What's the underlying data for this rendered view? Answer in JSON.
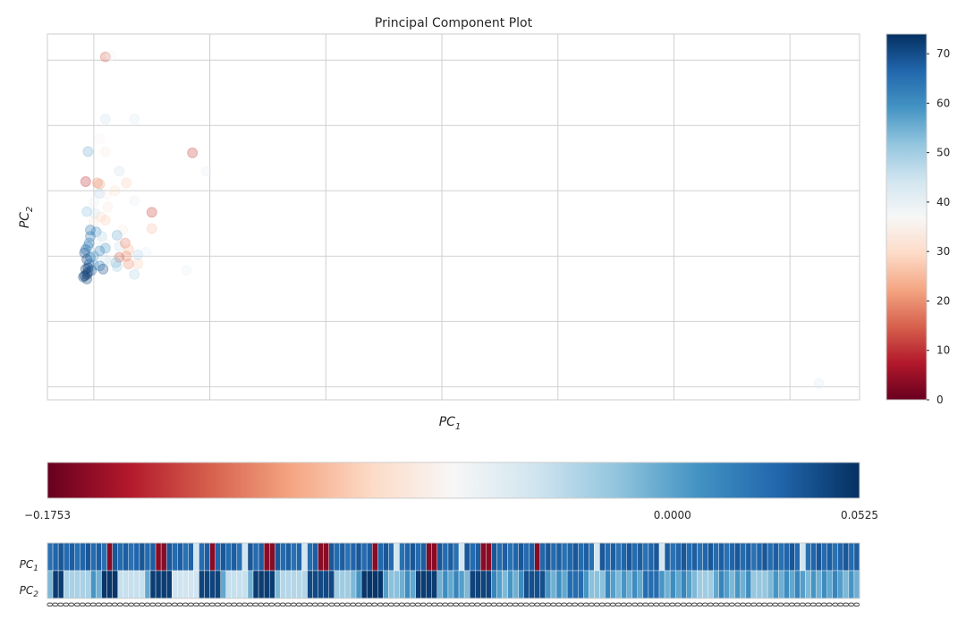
{
  "chart_data": [
    {
      "type": "scatter",
      "title": "Principal Component Plot",
      "xlabel": "PC",
      "xlabel_sub": "1",
      "ylabel": "PC",
      "ylabel_sub": "2",
      "xlim": [
        -0.4,
        6.6
      ],
      "ylim": [
        -2.2,
        3.4
      ],
      "x_gridlines": [
        0,
        1,
        2,
        3,
        4,
        5,
        6
      ],
      "y_gridlines": [
        -2,
        -1,
        0,
        1,
        2,
        3
      ],
      "grid": true,
      "colormap": "RdBu",
      "colorbar": {
        "min": 0,
        "max": 74,
        "ticks": [
          0,
          10,
          20,
          30,
          40,
          50,
          60,
          70
        ],
        "placement": "right"
      },
      "points": [
        {
          "x": 0.1,
          "y": 3.05,
          "c": 15
        },
        {
          "x": 0.15,
          "y": 3.07,
          "c": 38
        },
        {
          "x": 0.1,
          "y": 2.1,
          "c": 45
        },
        {
          "x": 0.35,
          "y": 2.1,
          "c": 42
        },
        {
          "x": -0.05,
          "y": 1.6,
          "c": 55
        },
        {
          "x": 0.05,
          "y": 1.8,
          "c": 36
        },
        {
          "x": 0.1,
          "y": 1.6,
          "c": 34
        },
        {
          "x": 0.85,
          "y": 1.58,
          "c": 12
        },
        {
          "x": 0.97,
          "y": 1.3,
          "c": 40
        },
        {
          "x": 0.22,
          "y": 1.3,
          "c": 45
        },
        {
          "x": -0.07,
          "y": 1.14,
          "c": 10
        },
        {
          "x": 0.03,
          "y": 1.12,
          "c": 20
        },
        {
          "x": 0.05,
          "y": 1.1,
          "c": 22
        },
        {
          "x": 0.28,
          "y": 1.12,
          "c": 28
        },
        {
          "x": 0.18,
          "y": 1.0,
          "c": 30
        },
        {
          "x": 0.05,
          "y": 0.96,
          "c": 48
        },
        {
          "x": 0.11,
          "y": 0.95,
          "c": 35
        },
        {
          "x": 0.35,
          "y": 0.85,
          "c": 40
        },
        {
          "x": 0.0,
          "y": 0.82,
          "c": 40
        },
        {
          "x": 0.12,
          "y": 0.75,
          "c": 33
        },
        {
          "x": -0.06,
          "y": 0.68,
          "c": 52
        },
        {
          "x": 0.01,
          "y": 0.65,
          "c": 45
        },
        {
          "x": 0.5,
          "y": 0.67,
          "c": 12
        },
        {
          "x": 0.06,
          "y": 0.6,
          "c": 30
        },
        {
          "x": 0.1,
          "y": 0.55,
          "c": 28
        },
        {
          "x": 0.0,
          "y": 0.53,
          "c": 33
        },
        {
          "x": 0.5,
          "y": 0.42,
          "c": 26
        },
        {
          "x": 0.25,
          "y": 0.4,
          "c": 34
        },
        {
          "x": 0.2,
          "y": 0.32,
          "c": 55
        },
        {
          "x": 0.02,
          "y": 0.37,
          "c": 60
        },
        {
          "x": -0.03,
          "y": 0.4,
          "c": 65
        },
        {
          "x": 0.07,
          "y": 0.3,
          "c": 48
        },
        {
          "x": 0.03,
          "y": 0.25,
          "c": 40
        },
        {
          "x": 0.22,
          "y": 0.15,
          "c": 45
        },
        {
          "x": 0.1,
          "y": 0.2,
          "c": 38
        },
        {
          "x": 0.27,
          "y": 0.2,
          "c": 18
        },
        {
          "x": 0.38,
          "y": 0.02,
          "c": 48
        },
        {
          "x": 0.3,
          "y": 0.1,
          "c": 25
        },
        {
          "x": 0.1,
          "y": 0.12,
          "c": 58
        },
        {
          "x": 0.05,
          "y": 0.08,
          "c": 62
        },
        {
          "x": -0.05,
          "y": 0.15,
          "c": 60
        },
        {
          "x": 0.28,
          "y": 0.0,
          "c": 20
        },
        {
          "x": 0.22,
          "y": -0.02,
          "c": 15
        },
        {
          "x": 0.45,
          "y": 0.06,
          "c": 40
        },
        {
          "x": 0.19,
          "y": -0.1,
          "c": 55
        },
        {
          "x": 0.38,
          "y": -0.12,
          "c": 28
        },
        {
          "x": 0.3,
          "y": -0.12,
          "c": 20
        },
        {
          "x": 0.1,
          "y": -0.05,
          "c": 45
        },
        {
          "x": 0.14,
          "y": -0.08,
          "c": 42
        },
        {
          "x": 0.0,
          "y": -0.14,
          "c": 55
        },
        {
          "x": 0.05,
          "y": -0.15,
          "c": 62
        },
        {
          "x": 0.08,
          "y": -0.2,
          "c": 70
        },
        {
          "x": 0.2,
          "y": -0.16,
          "c": 50
        },
        {
          "x": 0.35,
          "y": -0.28,
          "c": 48
        },
        {
          "x": 0.8,
          "y": -0.22,
          "c": 40
        },
        {
          "x": 6.25,
          "y": -1.95,
          "c": 42
        },
        {
          "x": -0.08,
          "y": 0.05,
          "c": 70
        },
        {
          "x": -0.06,
          "y": -0.05,
          "c": 72
        },
        {
          "x": -0.04,
          "y": -0.12,
          "c": 68
        },
        {
          "x": -0.07,
          "y": -0.2,
          "c": 73
        },
        {
          "x": -0.05,
          "y": -0.25,
          "c": 71
        },
        {
          "x": -0.08,
          "y": -0.3,
          "c": 74
        },
        {
          "x": -0.06,
          "y": -0.35,
          "c": 72
        },
        {
          "x": -0.09,
          "y": -0.32,
          "c": 70
        },
        {
          "x": -0.03,
          "y": -0.02,
          "c": 66
        },
        {
          "x": -0.02,
          "y": -0.22,
          "c": 69
        },
        {
          "x": -0.07,
          "y": 0.1,
          "c": 67
        },
        {
          "x": -0.04,
          "y": 0.2,
          "c": 64
        },
        {
          "x": -0.06,
          "y": -0.28,
          "c": 73
        },
        {
          "x": -0.05,
          "y": -0.18,
          "c": 71
        },
        {
          "x": 0.0,
          "y": 0.0,
          "c": 58
        },
        {
          "x": -0.03,
          "y": 0.3,
          "c": 63
        }
      ]
    },
    {
      "type": "heatmap",
      "rows": [
        "PC",
        "PC"
      ],
      "row_subscripts": [
        "1",
        "2"
      ],
      "colorbar": {
        "min": -0.1753,
        "max": 0.0525,
        "tick_labels": [
          "−0.1753",
          "0.0000",
          "0.0525"
        ],
        "ticks": [
          -0.1753,
          0.0,
          0.0525
        ],
        "placement": "top"
      },
      "n_columns": 150,
      "column_tick_label": "0",
      "pc1_strong_negative": [
        11,
        20,
        21,
        30,
        40,
        41,
        50,
        51,
        60,
        70,
        71,
        80,
        81,
        90
      ],
      "pc1_weak_negative": [
        27,
        36,
        47,
        64,
        76,
        101,
        113,
        139
      ],
      "pc2_negative_runs": [
        [
          3,
          7,
          0.35
        ],
        [
          13,
          17,
          0.5
        ],
        [
          23,
          27,
          0.55
        ],
        [
          33,
          36,
          0.5
        ],
        [
          43,
          47,
          0.4
        ],
        [
          53,
          55,
          0.3
        ],
        [
          63,
          64,
          0.2
        ],
        [
          100,
          102,
          0.2
        ],
        [
          120,
          122,
          0.3
        ],
        [
          130,
          132,
          0.25
        ]
      ],
      "pc2_positive_runs": [
        [
          1,
          2,
          0.9
        ],
        [
          10,
          12,
          0.95
        ],
        [
          19,
          22,
          0.9
        ],
        [
          28,
          31,
          0.85
        ],
        [
          38,
          41,
          0.9
        ],
        [
          48,
          52,
          0.8
        ],
        [
          58,
          61,
          0.95
        ],
        [
          68,
          71,
          0.9
        ],
        [
          78,
          81,
          0.85
        ],
        [
          88,
          91,
          0.75
        ],
        [
          96,
          98,
          0.5
        ],
        [
          110,
          112,
          0.5
        ]
      ]
    }
  ]
}
